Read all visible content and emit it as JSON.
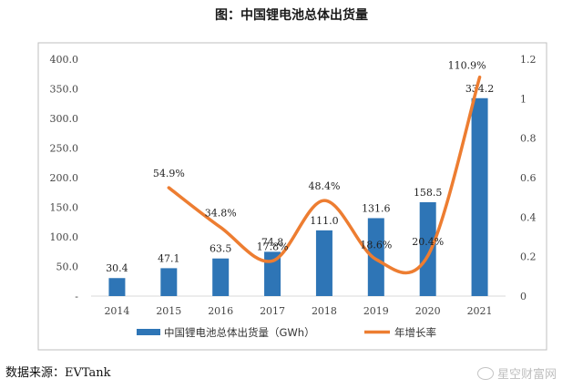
{
  "figure_title": "图：中国锂电池总体出货量",
  "source_text": "数据来源：EVTank",
  "watermark": {
    "icon": "weibo-icon",
    "text": "星空财富网"
  },
  "colors": {
    "bar": "#2e75b6",
    "line": "#ed7d31",
    "frame": "#bfbfbf"
  },
  "chart_data": {
    "type": "bar",
    "categories": [
      "2014",
      "2015",
      "2016",
      "2017",
      "2018",
      "2019",
      "2020",
      "2021"
    ],
    "series": [
      {
        "name": "中国锂电池总体出货量（GWh）",
        "type": "bar",
        "axis": "left",
        "values": [
          30.4,
          47.1,
          63.5,
          74.8,
          111.0,
          131.6,
          158.5,
          334.2
        ],
        "labels": [
          "30.4",
          "47.1",
          "63.5",
          "74.8",
          "111.0",
          "131.6",
          "158.5",
          "334.2"
        ]
      },
      {
        "name": "年增长率",
        "type": "line",
        "axis": "right",
        "values": [
          null,
          0.549,
          0.348,
          0.178,
          0.484,
          0.186,
          0.204,
          1.109
        ],
        "labels": [
          "",
          "54.9%",
          "34.8%",
          "17.8%",
          "48.4%",
          "18.6%",
          "20.4%",
          "110.9%"
        ]
      }
    ],
    "y_left": {
      "range": [
        0,
        400
      ],
      "ticks": [
        0,
        50,
        100,
        150,
        200,
        250,
        300,
        350,
        400
      ],
      "tick_labels": [
        "-",
        "50.0",
        "100.0",
        "150.0",
        "200.0",
        "250.0",
        "300.0",
        "350.0",
        "400.0"
      ]
    },
    "y_right": {
      "range": [
        0,
        1.2
      ],
      "ticks": [
        0,
        0.2,
        0.4,
        0.6,
        0.8,
        1.0,
        1.2
      ],
      "tick_labels": [
        "0",
        "0.2",
        "0.4",
        "0.6",
        "0.8",
        "1",
        "1.2"
      ]
    },
    "grid": false,
    "legend_position": "bottom-center"
  }
}
